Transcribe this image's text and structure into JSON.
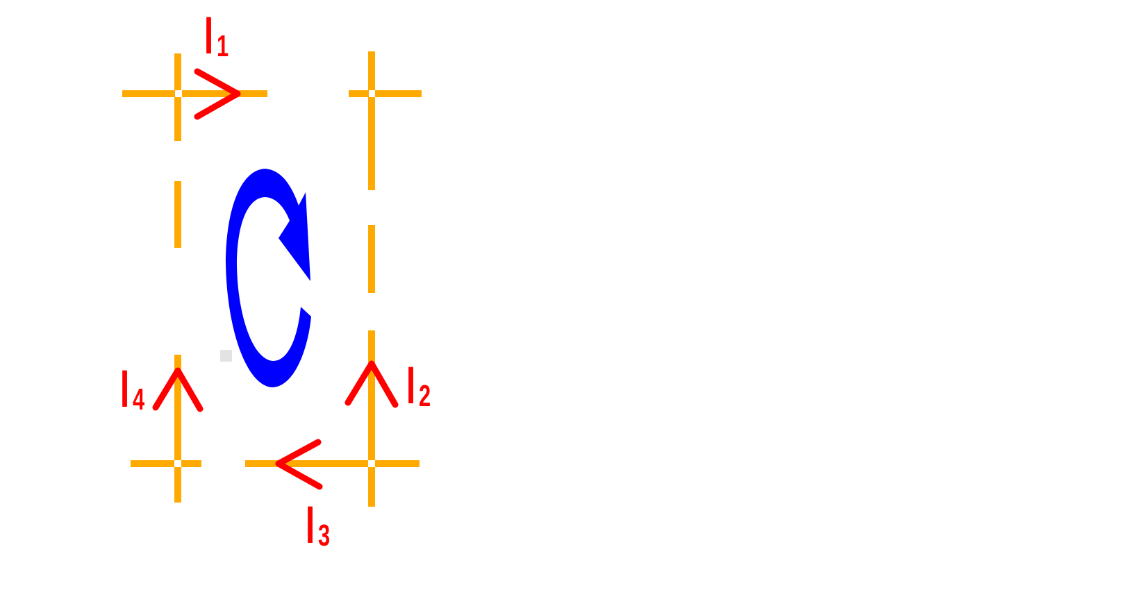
{
  "colors": {
    "wire": "#FFAA00",
    "current_arrow": "#FF0000",
    "loop_arrow": "#0000FF",
    "label": "#FF0000",
    "background": "#FFFFFF"
  },
  "labels": {
    "i1": {
      "main": "I",
      "sub": "1"
    },
    "i2": {
      "main": "I",
      "sub": "2"
    },
    "i3": {
      "main": "I",
      "sub": "3"
    },
    "i4": {
      "main": "I",
      "sub": "4"
    }
  }
}
